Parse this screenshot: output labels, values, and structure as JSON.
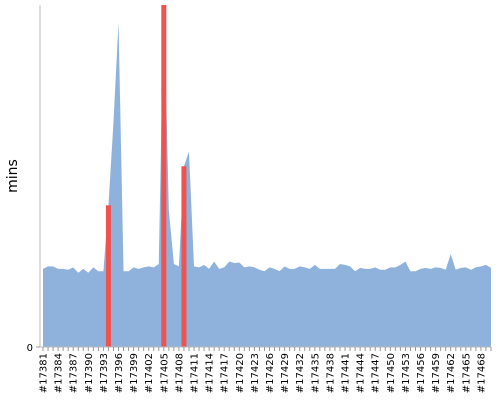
{
  "chart_data": {
    "type": "area",
    "y_label": "mins",
    "categories": [
      "#17381",
      null,
      null,
      "#17384",
      null,
      null,
      "#17387",
      null,
      null,
      "#17390",
      null,
      null,
      "#17393",
      null,
      null,
      "#17396",
      null,
      null,
      "#17399",
      null,
      null,
      "#17402",
      null,
      null,
      "#17405",
      null,
      null,
      "#17408",
      null,
      null,
      "#17411",
      null,
      null,
      "#17414",
      null,
      null,
      "#17417",
      null,
      null,
      "#17420",
      null,
      null,
      "#17423",
      null,
      null,
      "#17426",
      null,
      null,
      "#17429",
      null,
      null,
      "#17432",
      null,
      null,
      "#17435",
      null,
      null,
      "#17438",
      null,
      null,
      "#17441",
      null,
      null,
      "#17444",
      null,
      null,
      "#17447",
      null,
      null,
      "#17450",
      null,
      null,
      "#17453",
      null,
      null,
      "#17456",
      null,
      null,
      "#17459",
      null,
      null,
      "#17462",
      null,
      null,
      "#17465",
      null,
      null,
      "#17468",
      null,
      null
    ],
    "series": [
      {
        "color": "#8fb2dc",
        "values": [
          16,
          16.5,
          16.5,
          16,
          16,
          15.8,
          16.3,
          15.2,
          16,
          15.2,
          16.3,
          15.5,
          15.5,
          29,
          46,
          66.5,
          15.5,
          15.5,
          16.3,
          16,
          16.3,
          16.5,
          16.3,
          17,
          72,
          28,
          17,
          16.5,
          37,
          40,
          16.5,
          16.3,
          16.8,
          16,
          17.5,
          16,
          16.3,
          17.5,
          17.2,
          17.3,
          16.3,
          16.5,
          16.3,
          15.8,
          15.5,
          16.3,
          16,
          15.5,
          16.5,
          16,
          16,
          16.5,
          16.3,
          16,
          16.8,
          16,
          16,
          16,
          16,
          17,
          16.8,
          16.5,
          15.5,
          16.2,
          16,
          16,
          16.3,
          15.8,
          15.8,
          16.3,
          16.3,
          16.8,
          17.5,
          15.5,
          15.5,
          16,
          16.2,
          16,
          16.3,
          16.2,
          15.8,
          19,
          15.8,
          16.2,
          16.3,
          15.8,
          16.3,
          16.5,
          16.8,
          16.2
        ]
      },
      {
        "color": "#ef5350",
        "values": [
          null,
          null,
          null,
          null,
          null,
          null,
          null,
          null,
          null,
          null,
          null,
          null,
          null,
          29,
          null,
          null,
          null,
          null,
          null,
          null,
          null,
          null,
          null,
          null,
          72,
          null,
          null,
          null,
          37,
          null,
          null,
          null,
          null,
          null,
          null,
          null,
          null,
          null,
          null,
          null,
          null,
          null,
          null,
          null,
          null,
          null,
          null,
          null,
          null,
          null,
          null,
          null,
          null,
          null,
          null,
          null,
          null,
          null,
          null,
          null,
          null,
          null,
          null,
          null,
          null,
          null,
          null,
          null,
          null,
          null,
          null,
          null,
          null,
          null,
          null,
          null,
          null,
          null,
          null,
          null,
          null,
          null,
          null,
          null,
          null,
          null,
          null,
          null,
          null,
          null
        ]
      }
    ],
    "ylim": [
      0,
      70
    ],
    "yticks": [
      0
    ]
  }
}
